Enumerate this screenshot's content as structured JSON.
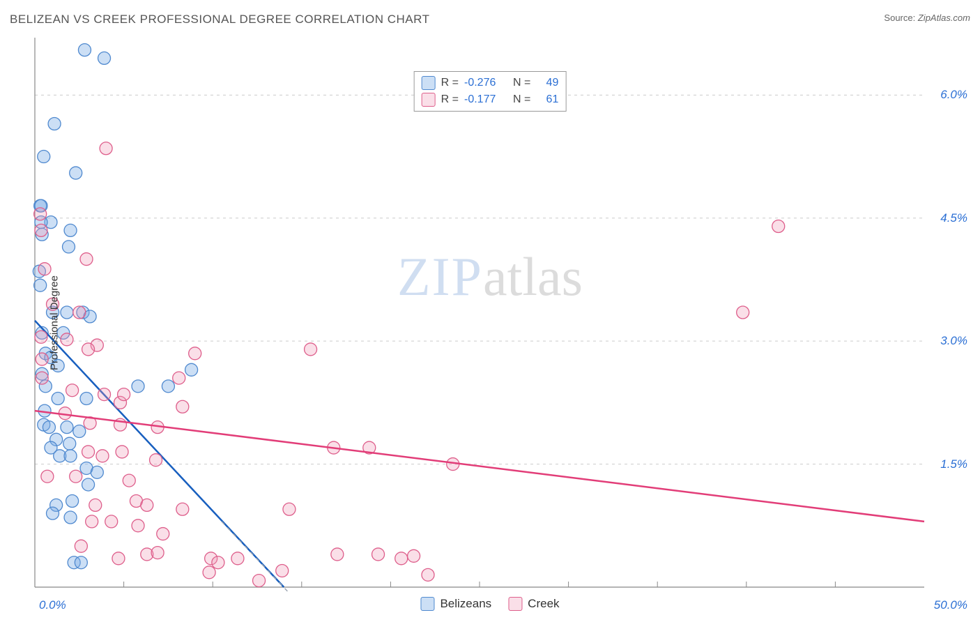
{
  "title": "BELIZEAN VS CREEK PROFESSIONAL DEGREE CORRELATION CHART",
  "source_label": "Source:",
  "source_value": "ZipAtlas.com",
  "ylabel": "Professional Degree",
  "watermark_zip": "ZIP",
  "watermark_rest": "atlas",
  "chart": {
    "type": "scatter",
    "xlim": [
      0,
      50
    ],
    "ylim": [
      0,
      6.7
    ],
    "x_tick_labels": {
      "min": "0.0%",
      "max": "50.0%"
    },
    "x_minor_ticks": [
      5,
      10,
      15,
      20,
      25,
      30,
      35,
      40,
      45
    ],
    "y_ticks": [
      1.5,
      3.0,
      4.5,
      6.0
    ],
    "y_tick_labels": [
      "1.5%",
      "3.0%",
      "4.5%",
      "6.0%"
    ],
    "background_color": "#ffffff",
    "grid_color": "#cccccc",
    "axis_color": "#888888",
    "marker_radius": 9,
    "marker_stroke_width": 1.3,
    "trend_stroke_width": 2.5,
    "series": [
      {
        "key": "belizeans",
        "label": "Belizeans",
        "fill": "rgba(120, 170, 230, 0.38)",
        "stroke": "#4f89cf",
        "trend_color": "#185fbf",
        "trend_dash_color": "#9aa4b0",
        "R": "-0.276",
        "N": "49",
        "trend": {
          "x1": 0,
          "y1": 3.25,
          "x2": 14,
          "y2": 0
        },
        "points": [
          [
            0.3,
            4.65
          ],
          [
            2.8,
            6.55
          ],
          [
            3.9,
            6.45
          ],
          [
            1.1,
            5.65
          ],
          [
            0.5,
            5.25
          ],
          [
            2.3,
            5.05
          ],
          [
            0.35,
            4.65
          ],
          [
            0.9,
            4.45
          ],
          [
            0.35,
            4.45
          ],
          [
            1.9,
            4.15
          ],
          [
            2.0,
            4.35
          ],
          [
            0.4,
            4.3
          ],
          [
            0.25,
            3.85
          ],
          [
            0.3,
            3.68
          ],
          [
            1.8,
            3.35
          ],
          [
            2.7,
            3.35
          ],
          [
            3.1,
            3.3
          ],
          [
            0.4,
            3.1
          ],
          [
            0.6,
            2.85
          ],
          [
            0.9,
            2.8
          ],
          [
            1.3,
            2.7
          ],
          [
            8.8,
            2.65
          ],
          [
            0.6,
            2.45
          ],
          [
            5.8,
            2.45
          ],
          [
            2.9,
            2.3
          ],
          [
            1.3,
            2.3
          ],
          [
            0.55,
            2.15
          ],
          [
            0.5,
            1.98
          ],
          [
            0.8,
            1.95
          ],
          [
            1.8,
            1.95
          ],
          [
            2.5,
            1.9
          ],
          [
            1.2,
            1.8
          ],
          [
            1.95,
            1.75
          ],
          [
            0.9,
            1.7
          ],
          [
            1.4,
            1.6
          ],
          [
            2.0,
            1.6
          ],
          [
            2.9,
            1.45
          ],
          [
            3.5,
            1.4
          ],
          [
            3.0,
            1.25
          ],
          [
            2.1,
            1.05
          ],
          [
            1.2,
            1.0
          ],
          [
            1.0,
            0.9
          ],
          [
            2.0,
            0.85
          ],
          [
            2.2,
            0.3
          ],
          [
            2.6,
            0.3
          ],
          [
            7.5,
            2.45
          ],
          [
            0.4,
            2.6
          ],
          [
            1.6,
            3.1
          ],
          [
            1.0,
            3.35
          ]
        ]
      },
      {
        "key": "creek",
        "label": "Creek",
        "fill": "rgba(238, 150, 180, 0.30)",
        "stroke": "#de5e8b",
        "trend_color": "#e23d78",
        "R": "-0.177",
        "N": "61",
        "trend": {
          "x1": 0,
          "y1": 2.15,
          "x2": 50,
          "y2": 0.8
        },
        "points": [
          [
            4.0,
            5.35
          ],
          [
            0.3,
            4.55
          ],
          [
            0.35,
            4.35
          ],
          [
            2.9,
            4.0
          ],
          [
            0.55,
            3.88
          ],
          [
            2.5,
            3.35
          ],
          [
            1.0,
            3.45
          ],
          [
            0.35,
            3.05
          ],
          [
            1.8,
            3.02
          ],
          [
            3.5,
            2.95
          ],
          [
            15.5,
            2.9
          ],
          [
            0.4,
            2.78
          ],
          [
            9.0,
            2.85
          ],
          [
            8.1,
            2.55
          ],
          [
            0.4,
            2.55
          ],
          [
            2.1,
            2.4
          ],
          [
            3.9,
            2.35
          ],
          [
            4.8,
            2.25
          ],
          [
            8.3,
            2.2
          ],
          [
            1.7,
            2.12
          ],
          [
            3.1,
            2.0
          ],
          [
            4.8,
            1.98
          ],
          [
            6.9,
            1.95
          ],
          [
            3.0,
            1.65
          ],
          [
            3.8,
            1.6
          ],
          [
            4.9,
            1.65
          ],
          [
            16.8,
            1.7
          ],
          [
            18.8,
            1.7
          ],
          [
            0.7,
            1.35
          ],
          [
            2.3,
            1.35
          ],
          [
            5.3,
            1.3
          ],
          [
            6.8,
            1.55
          ],
          [
            23.5,
            1.5
          ],
          [
            3.4,
            1.0
          ],
          [
            5.7,
            1.05
          ],
          [
            6.3,
            1.0
          ],
          [
            8.3,
            0.95
          ],
          [
            3.2,
            0.8
          ],
          [
            4.3,
            0.8
          ],
          [
            5.8,
            0.75
          ],
          [
            7.2,
            0.65
          ],
          [
            2.6,
            0.5
          ],
          [
            9.9,
            0.35
          ],
          [
            11.4,
            0.35
          ],
          [
            13.9,
            0.2
          ],
          [
            17.0,
            0.4
          ],
          [
            19.3,
            0.4
          ],
          [
            20.6,
            0.35
          ],
          [
            21.3,
            0.38
          ],
          [
            22.1,
            0.15
          ],
          [
            6.3,
            0.4
          ],
          [
            6.9,
            0.42
          ],
          [
            4.7,
            0.35
          ],
          [
            9.8,
            0.18
          ],
          [
            14.3,
            0.95
          ],
          [
            41.8,
            4.4
          ],
          [
            39.8,
            3.35
          ],
          [
            10.3,
            0.3
          ],
          [
            12.6,
            0.08
          ],
          [
            5.0,
            2.35
          ],
          [
            3.0,
            2.9
          ]
        ]
      }
    ],
    "legend_r": {
      "r_label": "R =",
      "n_label": "N =",
      "r_color": "#2b6fd4",
      "text_color": "#444"
    },
    "bottom_legend": {
      "text_color": "#333"
    }
  }
}
